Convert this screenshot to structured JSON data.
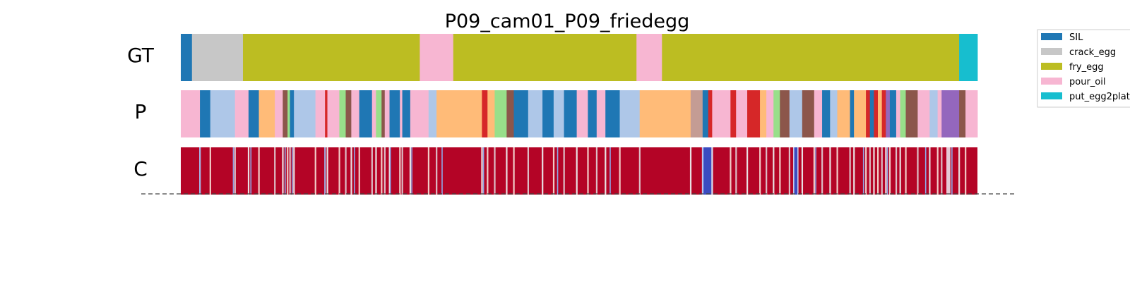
{
  "chart_data": {
    "type": "segmentation-timeline",
    "title": "P09_cam01_P09_friedegg",
    "rows": [
      "GT",
      "P",
      "C"
    ],
    "total_frames": 1000,
    "legend": {
      "placement": "top-right",
      "entries": [
        "SIL",
        "crack_egg",
        "fry_egg",
        "pour_oil",
        "put_egg2plate"
      ]
    },
    "colors": {
      "SIL": "#1f77b4",
      "crack_egg": "#c7c7c7",
      "fry_egg": "#bcbd22",
      "pour_oil": "#f7b6d2",
      "put_egg2plate": "#17becf",
      "c2": "#aec7e8",
      "c3": "#ffbb78",
      "c4": "#8c564b",
      "c5": "#d62728",
      "c6": "#98df8a",
      "c7": "#c49c94",
      "c8": "#9467bd",
      "conf_high": "#b40426",
      "conf_mid": "#f7f7f7",
      "conf_low": "#3b4cc0"
    },
    "gt_segments": [
      {
        "label": "SIL",
        "start": 0,
        "end": 14
      },
      {
        "label": "crack_egg",
        "start": 14,
        "end": 78
      },
      {
        "label": "fry_egg",
        "start": 78,
        "end": 300
      },
      {
        "label": "pour_oil",
        "start": 300,
        "end": 342
      },
      {
        "label": "fry_egg",
        "start": 342,
        "end": 572
      },
      {
        "label": "pour_oil",
        "start": 572,
        "end": 604
      },
      {
        "label": "fry_egg",
        "start": 604,
        "end": 977
      },
      {
        "label": "put_egg2plate",
        "start": 977,
        "end": 1000
      }
    ],
    "pred_segments": [
      {
        "label": "pour_oil",
        "start": 0,
        "end": 24
      },
      {
        "label": "SIL",
        "start": 24,
        "end": 37
      },
      {
        "label": "c2",
        "start": 37,
        "end": 68
      },
      {
        "label": "pour_oil",
        "start": 68,
        "end": 85
      },
      {
        "label": "SIL",
        "start": 85,
        "end": 98
      },
      {
        "label": "c3",
        "start": 98,
        "end": 118
      },
      {
        "label": "pour_oil",
        "start": 118,
        "end": 128
      },
      {
        "label": "c4",
        "start": 128,
        "end": 134
      },
      {
        "label": "c6",
        "start": 134,
        "end": 137
      },
      {
        "label": "SIL",
        "start": 137,
        "end": 142
      },
      {
        "label": "c2",
        "start": 142,
        "end": 169
      },
      {
        "label": "pour_oil",
        "start": 169,
        "end": 181
      },
      {
        "label": "c5",
        "start": 181,
        "end": 184
      },
      {
        "label": "pour_oil",
        "start": 184,
        "end": 199
      },
      {
        "label": "c6",
        "start": 199,
        "end": 207
      },
      {
        "label": "c4",
        "start": 207,
        "end": 214
      },
      {
        "label": "pour_oil",
        "start": 214,
        "end": 224
      },
      {
        "label": "SIL",
        "start": 224,
        "end": 240
      },
      {
        "label": "pour_oil",
        "start": 240,
        "end": 245
      },
      {
        "label": "c6",
        "start": 245,
        "end": 252
      },
      {
        "label": "c4",
        "start": 252,
        "end": 256
      },
      {
        "label": "pour_oil",
        "start": 256,
        "end": 262
      },
      {
        "label": "SIL",
        "start": 262,
        "end": 275
      },
      {
        "label": "pour_oil",
        "start": 275,
        "end": 278
      },
      {
        "label": "SIL",
        "start": 278,
        "end": 288
      },
      {
        "label": "pour_oil",
        "start": 288,
        "end": 311
      },
      {
        "label": "c2",
        "start": 311,
        "end": 321
      },
      {
        "label": "c3",
        "start": 321,
        "end": 378
      },
      {
        "label": "c5",
        "start": 378,
        "end": 385
      },
      {
        "label": "c3",
        "start": 385,
        "end": 394
      },
      {
        "label": "c6",
        "start": 394,
        "end": 409
      },
      {
        "label": "c4",
        "start": 409,
        "end": 418
      },
      {
        "label": "SIL",
        "start": 418,
        "end": 436
      },
      {
        "label": "c2",
        "start": 436,
        "end": 454
      },
      {
        "label": "SIL",
        "start": 454,
        "end": 468
      },
      {
        "label": "c2",
        "start": 468,
        "end": 481
      },
      {
        "label": "SIL",
        "start": 481,
        "end": 497
      },
      {
        "label": "pour_oil",
        "start": 497,
        "end": 511
      },
      {
        "label": "SIL",
        "start": 511,
        "end": 522
      },
      {
        "label": "pour_oil",
        "start": 522,
        "end": 533
      },
      {
        "label": "SIL",
        "start": 533,
        "end": 551
      },
      {
        "label": "c2",
        "start": 551,
        "end": 576
      },
      {
        "label": "c3",
        "start": 576,
        "end": 640
      },
      {
        "label": "c7",
        "start": 640,
        "end": 655
      },
      {
        "label": "SIL",
        "start": 655,
        "end": 662
      },
      {
        "label": "c5",
        "start": 662,
        "end": 667
      },
      {
        "label": "pour_oil",
        "start": 667,
        "end": 690
      },
      {
        "label": "c5",
        "start": 690,
        "end": 697
      },
      {
        "label": "pour_oil",
        "start": 697,
        "end": 711
      },
      {
        "label": "c5",
        "start": 711,
        "end": 727
      },
      {
        "label": "c3",
        "start": 727,
        "end": 735
      },
      {
        "label": "pour_oil",
        "start": 735,
        "end": 744
      },
      {
        "label": "c6",
        "start": 744,
        "end": 752
      },
      {
        "label": "c4",
        "start": 752,
        "end": 764
      },
      {
        "label": "c2",
        "start": 764,
        "end": 780
      },
      {
        "label": "c4",
        "start": 780,
        "end": 795
      },
      {
        "label": "pour_oil",
        "start": 795,
        "end": 805
      },
      {
        "label": "SIL",
        "start": 805,
        "end": 815
      },
      {
        "label": "c2",
        "start": 815,
        "end": 824
      },
      {
        "label": "c3",
        "start": 824,
        "end": 840
      },
      {
        "label": "SIL",
        "start": 840,
        "end": 845
      },
      {
        "label": "c3",
        "start": 845,
        "end": 860
      },
      {
        "label": "c5",
        "start": 860,
        "end": 865
      },
      {
        "label": "SIL",
        "start": 865,
        "end": 870
      },
      {
        "label": "c5",
        "start": 870,
        "end": 875
      },
      {
        "label": "c3",
        "start": 875,
        "end": 880
      },
      {
        "label": "c5",
        "start": 880,
        "end": 885
      },
      {
        "label": "c8",
        "start": 885,
        "end": 890
      },
      {
        "label": "SIL",
        "start": 890,
        "end": 898
      },
      {
        "label": "pour_oil",
        "start": 898,
        "end": 903
      },
      {
        "label": "c6",
        "start": 903,
        "end": 910
      },
      {
        "label": "c4",
        "start": 910,
        "end": 925
      },
      {
        "label": "pour_oil",
        "start": 925,
        "end": 940
      },
      {
        "label": "c2",
        "start": 940,
        "end": 950
      },
      {
        "label": "pour_oil",
        "start": 950,
        "end": 955
      },
      {
        "label": "c8",
        "start": 955,
        "end": 977
      },
      {
        "label": "c4",
        "start": 977,
        "end": 985
      },
      {
        "label": "pour_oil",
        "start": 985,
        "end": 1000
      }
    ],
    "conf_low_frames": [
      24,
      66,
      88,
      131,
      140,
      181,
      218,
      263,
      290,
      328,
      380,
      473,
      539,
      655,
      662,
      797,
      857,
      887,
      935,
      968
    ],
    "conf_dips": [
      {
        "start": 656,
        "end": 666,
        "level": "low"
      },
      {
        "start": 770,
        "end": 774,
        "level": "low"
      },
      {
        "start": 961,
        "end": 966,
        "level": "mid"
      }
    ]
  }
}
